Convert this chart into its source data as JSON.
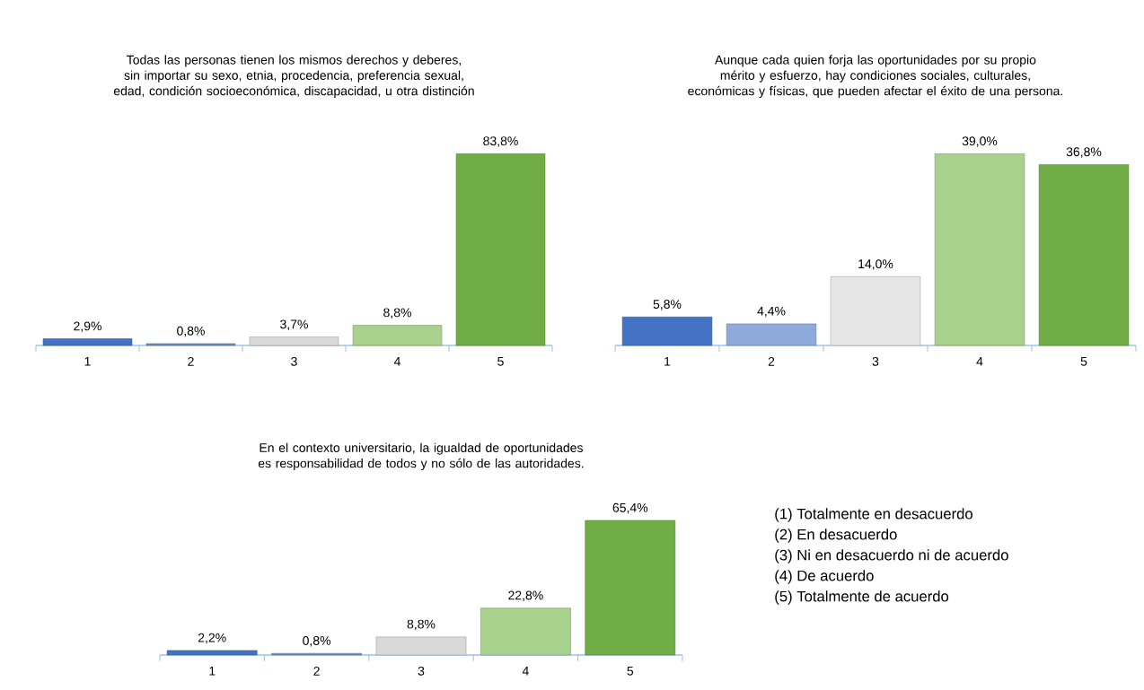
{
  "chart_data": [
    {
      "type": "bar",
      "title": "Todas las personas tienen los mismos derechos y deberes, sin importar su sexo, etnia, procedencia, preferencia sexual, edad, condición socioeconómica, discapacidad, u otra distinción",
      "categories": [
        "1",
        "2",
        "3",
        "4",
        "5"
      ],
      "values": [
        2.9,
        0.8,
        3.7,
        8.8,
        83.8
      ],
      "value_labels": [
        "2,9%",
        "0,8%",
        "3,7%",
        "8,8%",
        "83,8%"
      ],
      "colors": [
        "#4472c4",
        "#6f8fc5",
        "#d9d9d9",
        "#a9d18e",
        "#70ad47"
      ]
    },
    {
      "type": "bar",
      "title": "Aunque cada quien forja las oportunidades por su propio mérito y esfuerzo, hay condiciones sociales, culturales, económicas y físicas, que pueden afectar el éxito de una persona.",
      "categories": [
        "1",
        "2",
        "3",
        "4",
        "5"
      ],
      "values": [
        5.8,
        4.4,
        14.0,
        39.0,
        36.8
      ],
      "value_labels": [
        "5,8%",
        "4,4%",
        "14,0%",
        "39,0%",
        "36,8%"
      ],
      "colors": [
        "#4472c4",
        "#8eaadb",
        "#e7e6e6",
        "#a9d18e",
        "#70ad47"
      ]
    },
    {
      "type": "bar",
      "title": "En el contexto universitario, la igualdad de oportunidades es responsabilidad de todos y no sólo de las autoridades.",
      "categories": [
        "1",
        "2",
        "3",
        "4",
        "5"
      ],
      "values": [
        2.2,
        0.8,
        8.8,
        22.8,
        65.4
      ],
      "value_labels": [
        "2,2%",
        "0,8%",
        "8,8%",
        "22,8%",
        "65,4%"
      ],
      "colors": [
        "#4472c4",
        "#6f8fc5",
        "#d9d9d9",
        "#a9d18e",
        "#70ad47"
      ]
    },
    {
      "type": "other",
      "annotations": [
        "(1) Totalmente en desacuerdo",
        "(2) En desacuerdo",
        "(3) Ni en desacuerdo ni de acuerdo",
        "(4) De acuerdo",
        "(5) Totalmente de acuerdo"
      ]
    }
  ]
}
